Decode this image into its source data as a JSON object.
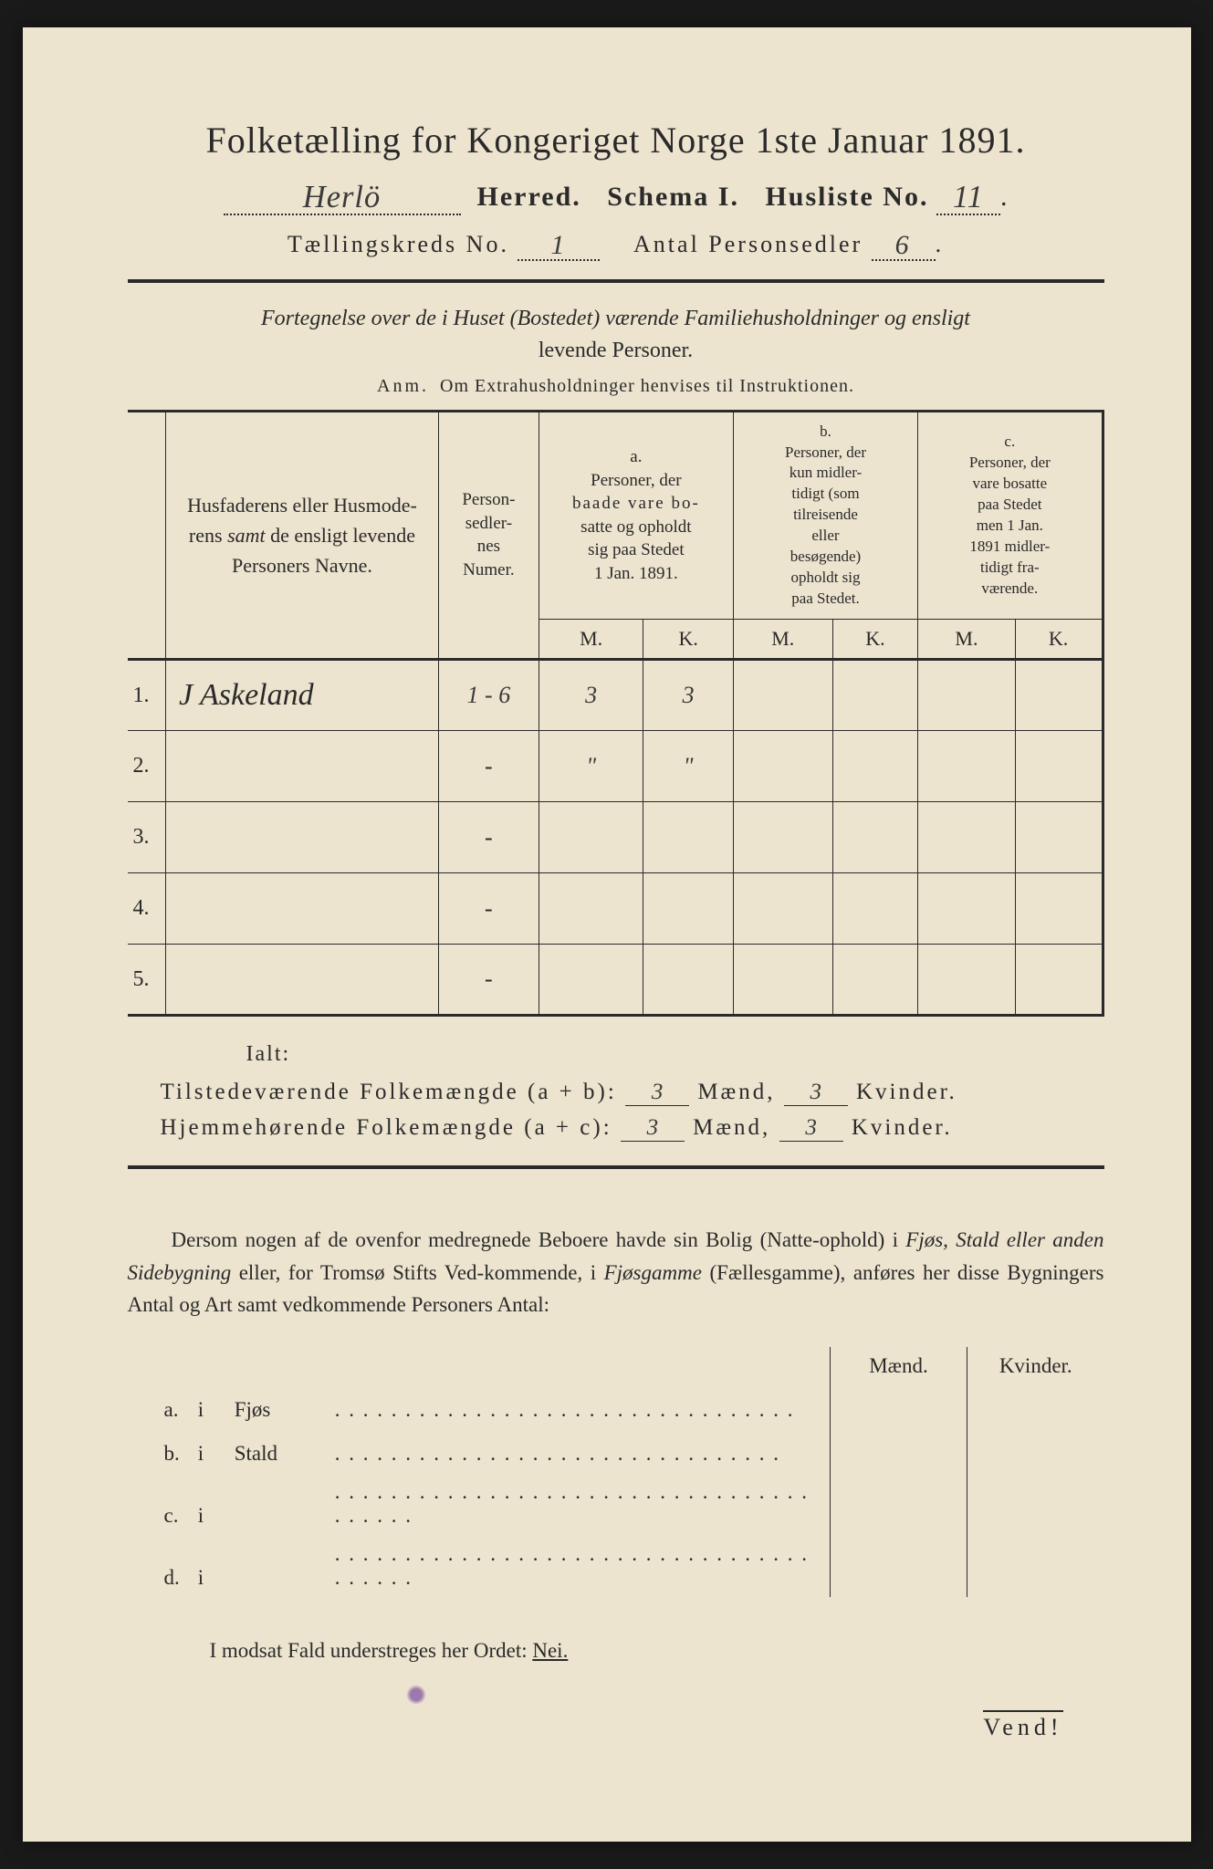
{
  "header": {
    "title": "Folketælling for Kongeriget Norge 1ste Januar 1891.",
    "herred_value": "Herlö",
    "herred_label": "Herred.",
    "schema_label": "Schema I.",
    "husliste_label": "Husliste No.",
    "husliste_value": "11",
    "kreds_label": "Tællingskreds No.",
    "kreds_value": "1",
    "antal_label": "Antal Personsedler",
    "antal_value": "6"
  },
  "intro": {
    "line1": "Fortegnelse over de i Huset (Bostedet) værende Familiehusholdninger og ensligt",
    "line2": "levende Personer.",
    "anm_label": "Anm.",
    "anm_text": "Om Extrahusholdninger henvises til Instruktionen."
  },
  "table": {
    "col_names_1": "Husfaderens eller Husmode-",
    "col_names_2a": "rens ",
    "col_names_2b": "samt",
    "col_names_2c": " de ensligt levende",
    "col_names_3": "Personers Navne.",
    "col_numer_1": "Person-",
    "col_numer_2": "sedler-",
    "col_numer_3": "nes",
    "col_numer_4": "Numer.",
    "col_a_label": "a.",
    "col_a_1": "Personer, der",
    "col_a_2": "baade vare bo-",
    "col_a_3": "satte og opholdt",
    "col_a_4": "sig paa Stedet",
    "col_a_5": "1 Jan. 1891.",
    "col_b_label": "b.",
    "col_b_1": "Personer, der",
    "col_b_2": "kun midler-",
    "col_b_3": "tidigt (som",
    "col_b_4": "tilreisende",
    "col_b_5": "eller",
    "col_b_6": "besøgende)",
    "col_b_7": "opholdt sig",
    "col_b_8": "paa Stedet.",
    "col_c_label": "c.",
    "col_c_1": "Personer, der",
    "col_c_2": "vare bosatte",
    "col_c_3": "paa Stedet",
    "col_c_4": "men 1 Jan.",
    "col_c_5": "1891 midler-",
    "col_c_6": "tidigt fra-",
    "col_c_7": "værende.",
    "M": "M.",
    "K": "K.",
    "rows": [
      {
        "n": "1.",
        "name": "J Askeland",
        "numer": "1 - 6",
        "aM": "3",
        "aK": "3",
        "bM": "",
        "bK": "",
        "cM": "",
        "cK": ""
      },
      {
        "n": "2.",
        "name": "",
        "numer": "-",
        "aM": "\"",
        "aK": "\"",
        "bM": "",
        "bK": "",
        "cM": "",
        "cK": ""
      },
      {
        "n": "3.",
        "name": "",
        "numer": "-",
        "aM": "",
        "aK": "",
        "bM": "",
        "bK": "",
        "cM": "",
        "cK": ""
      },
      {
        "n": "4.",
        "name": "",
        "numer": "-",
        "aM": "",
        "aK": "",
        "bM": "",
        "bK": "",
        "cM": "",
        "cK": ""
      },
      {
        "n": "5.",
        "name": "",
        "numer": "-",
        "aM": "",
        "aK": "",
        "bM": "",
        "bK": "",
        "cM": "",
        "cK": ""
      }
    ]
  },
  "totals": {
    "ialt": "Ialt:",
    "tilstede_label": "Tilstedeværende Folkemængde (a + b):",
    "hjemme_label": "Hjemmehørende Folkemængde (a + c):",
    "maend": "Mænd,",
    "kvinder": "Kvinder.",
    "t_m": "3",
    "t_k": "3",
    "h_m": "3",
    "h_k": "3"
  },
  "para": {
    "text1": "Dersom nogen af de ovenfor medregnede Beboere havde sin Bolig (Natte-ophold) i ",
    "i1": "Fjøs, Stald eller anden Sidebygning",
    "text2": " eller, for Tromsø Stifts Ved-kommende, i ",
    "i2": "Fjøsgamme",
    "text3": " (Fællesgamme), anføres her disse Bygningers Antal og Art samt vedkommende Personers Antal:"
  },
  "mk": {
    "maend": "Mænd.",
    "kvinder": "Kvinder.",
    "rows": [
      {
        "lab": "a.",
        "i": "i",
        "type": "Fjøs",
        "dots": ". . . . . . . . . . . . .   . . . . . . . . . . . . . . . . . . . ."
      },
      {
        "lab": "b.",
        "i": "i",
        "type": "Stald",
        "dots": ". . . . . . . . . . . . . . . . . . . . . . . . . . . . . . . ."
      },
      {
        "lab": "c.",
        "i": "i",
        "type": "",
        "dots": ". . . . . . . . . . . . . . . . . . . . . . . . . . . . . . . . . . . . . . . ."
      },
      {
        "lab": "d.",
        "i": "i",
        "type": "",
        "dots": ". . . . . . . . . . . . . . . . . . . . . . . . . . . . . . . . . . . . . . . ."
      }
    ]
  },
  "footer": {
    "nei_text": "I modsat Fald understreges her Ordet: ",
    "nei": "Nei.",
    "vend": "Vend!"
  },
  "colors": {
    "paper": "#ede4cf",
    "ink": "#2a2a2a",
    "handwriting": "#3a3a3a",
    "stain": "#7a4a9e"
  }
}
